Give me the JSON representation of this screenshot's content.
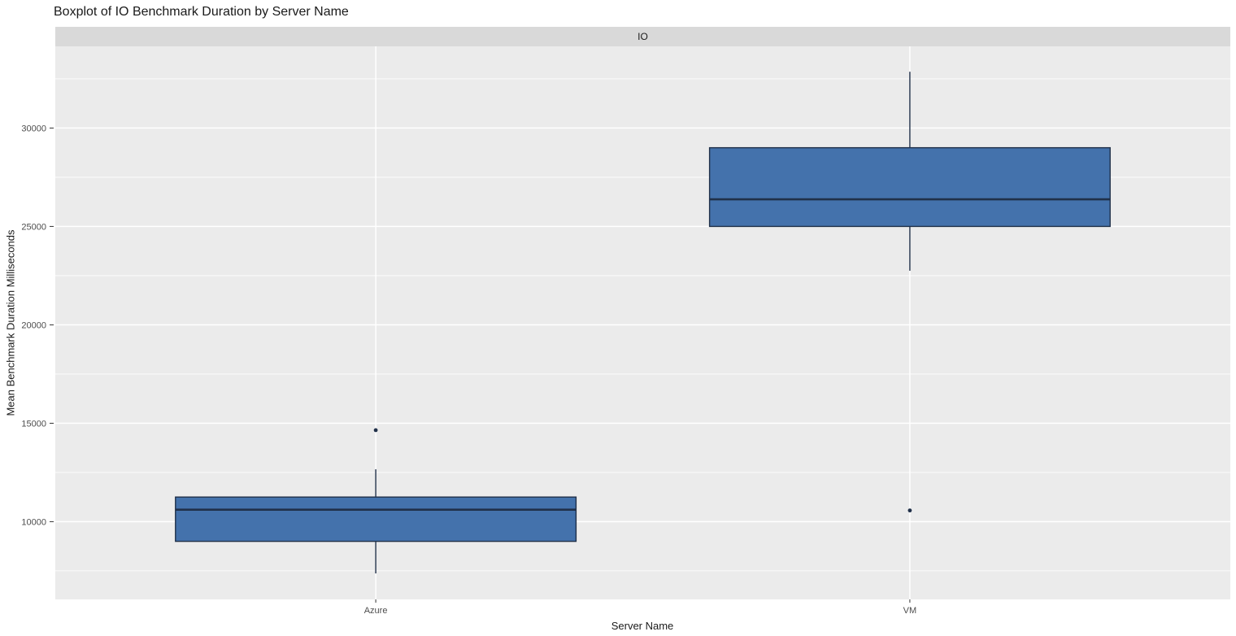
{
  "page": {
    "title": "Boxplot of IO Benchmark Duration by Server Name"
  },
  "chart_data": {
    "type": "boxplot",
    "title": "Boxplot of IO Benchmark Duration by Server Name",
    "facet_label": "IO",
    "xlabel": "Server Name",
    "ylabel": "Mean Benchmark Duration Milliseconds",
    "categories": [
      "Azure",
      "VM"
    ],
    "series": [
      {
        "name": "Azure",
        "whisker_low": 7370,
        "q1": 9000,
        "median": 10610,
        "q3": 11250,
        "whisker_high": 12660,
        "outliers": [
          14650
        ]
      },
      {
        "name": "VM",
        "whisker_low": 22750,
        "q1": 25000,
        "median": 26380,
        "q3": 29000,
        "whisker_high": 32860,
        "outliers": [
          10570
        ]
      }
    ],
    "ylim": [
      6050,
      34150
    ],
    "yticks": [
      10000,
      15000,
      20000,
      25000,
      30000
    ],
    "yticks_minor": [
      7500,
      12500,
      17500,
      22500,
      27500,
      32500
    ],
    "grid": true,
    "legend": "none",
    "colors": {
      "box_fill": "#4472ac",
      "box_stroke": "#203049",
      "outlier": "#203049",
      "panel_bg": "#ebebeb",
      "strip_bg": "#d9d9d9",
      "grid_line": "#ffffff",
      "tick_mark": "#333333",
      "tick_label": "#4d4d4d",
      "text": "#1a1a1a"
    }
  }
}
